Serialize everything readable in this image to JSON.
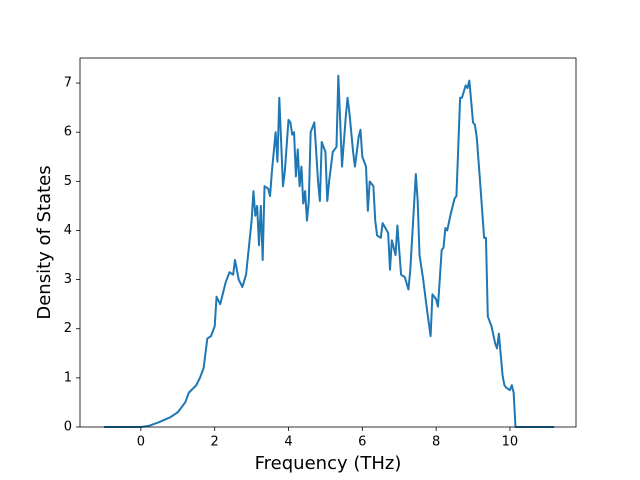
{
  "chart_data": {
    "type": "line",
    "xlabel": "Frequency (THz)",
    "ylabel": "Density of States",
    "color": "#1f77b4",
    "xlim": [
      -1.65,
      11.79
    ],
    "ylim": [
      0,
      7.51
    ],
    "xticks": [
      0,
      2,
      4,
      6,
      8,
      10
    ],
    "yticks": [
      0,
      1,
      2,
      3,
      4,
      5,
      6,
      7
    ],
    "x": [
      -1,
      0,
      0.2,
      0.5,
      0.8,
      1.0,
      1.1,
      1.2,
      1.3,
      1.5,
      1.6,
      1.7,
      1.8,
      1.9,
      2.0,
      2.05,
      2.15,
      2.2,
      2.3,
      2.4,
      2.5,
      2.55,
      2.65,
      2.75,
      2.85,
      3.0,
      3.05,
      3.1,
      3.15,
      3.2,
      3.25,
      3.3,
      3.35,
      3.45,
      3.5,
      3.55,
      3.65,
      3.7,
      3.75,
      3.85,
      3.9,
      4.0,
      4.05,
      4.1,
      4.15,
      4.2,
      4.25,
      4.3,
      4.35,
      4.4,
      4.45,
      4.5,
      4.55,
      4.6,
      4.7,
      4.8,
      4.85,
      4.9,
      5.0,
      5.05,
      5.1,
      5.2,
      5.3,
      5.35,
      5.45,
      5.55,
      5.6,
      5.65,
      5.75,
      5.8,
      5.9,
      5.95,
      6.0,
      6.1,
      6.15,
      6.2,
      6.3,
      6.35,
      6.4,
      6.5,
      6.55,
      6.7,
      6.75,
      6.8,
      6.9,
      6.95,
      7.0,
      7.05,
      7.15,
      7.25,
      7.3,
      7.4,
      7.45,
      7.5,
      7.55,
      7.65,
      7.75,
      7.85,
      7.9,
      8.0,
      8.05,
      8.15,
      8.2,
      8.25,
      8.3,
      8.4,
      8.5,
      8.55,
      8.65,
      8.7,
      8.8,
      8.85,
      8.9,
      9.0,
      9.05,
      9.1,
      9.2,
      9.3,
      9.35,
      9.4,
      9.5,
      9.6,
      9.65,
      9.7,
      9.8,
      9.85,
      9.9,
      10.0,
      10.05,
      10.1,
      10.15,
      10.2,
      11.2
    ],
    "values": [
      0,
      0,
      0.02,
      0.1,
      0.2,
      0.3,
      0.4,
      0.5,
      0.7,
      0.85,
      1.0,
      1.2,
      1.8,
      1.85,
      2.05,
      2.65,
      2.5,
      2.65,
      2.95,
      3.15,
      3.1,
      3.4,
      3.0,
      2.85,
      3.1,
      4.2,
      4.8,
      4.3,
      4.5,
      3.7,
      4.5,
      3.4,
      4.9,
      4.85,
      4.7,
      5.2,
      6.0,
      5.4,
      6.7,
      4.9,
      5.2,
      6.25,
      6.2,
      5.95,
      6.0,
      5.1,
      5.65,
      4.9,
      5.3,
      4.55,
      4.8,
      4.2,
      4.6,
      6.0,
      6.2,
      5.0,
      4.6,
      5.8,
      5.6,
      4.6,
      5.0,
      5.6,
      5.7,
      7.15,
      5.3,
      6.3,
      6.7,
      6.4,
      5.6,
      5.3,
      5.9,
      6.05,
      5.5,
      5.3,
      4.4,
      5.0,
      4.9,
      4.2,
      3.9,
      3.85,
      4.15,
      3.95,
      3.2,
      3.8,
      3.5,
      4.1,
      3.6,
      3.1,
      3.05,
      2.8,
      3.2,
      4.5,
      5.15,
      4.6,
      3.5,
      3.0,
      2.4,
      1.85,
      2.7,
      2.6,
      2.45,
      3.6,
      3.65,
      4.05,
      4.0,
      4.35,
      4.65,
      4.7,
      6.7,
      6.7,
      6.95,
      6.9,
      7.05,
      6.2,
      6.15,
      5.9,
      4.9,
      3.85,
      3.85,
      2.25,
      2.05,
      1.7,
      1.6,
      1.9,
      1.05,
      0.85,
      0.8,
      0.75,
      0.85,
      0.7,
      0,
      0,
      0
    ]
  }
}
